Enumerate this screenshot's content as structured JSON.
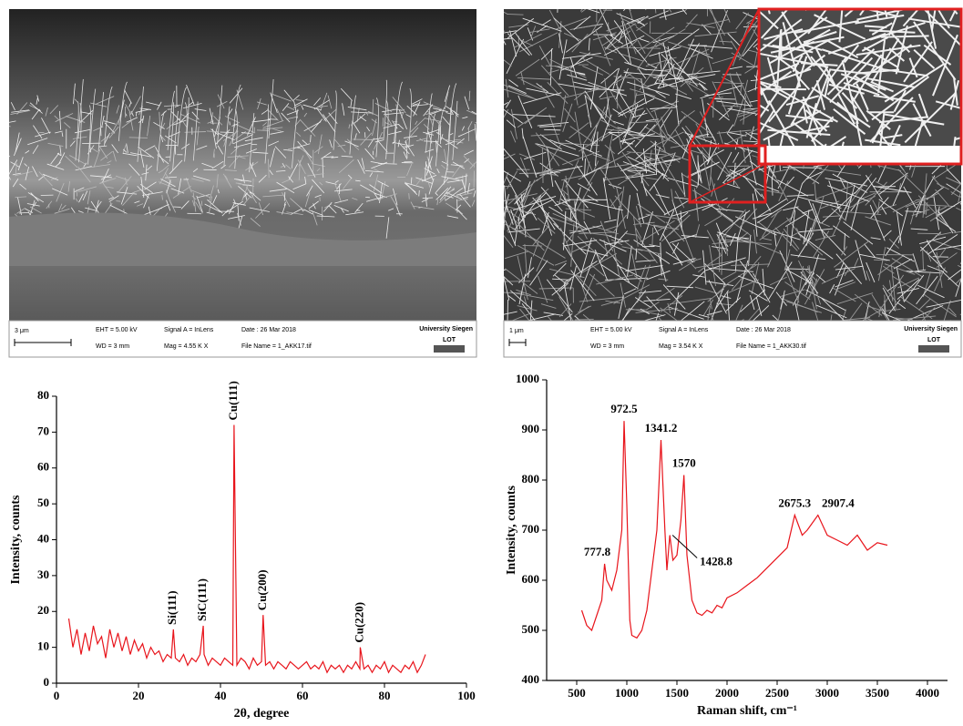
{
  "sem_images": [
    {
      "scale_bar": "3 μm",
      "eht": "EHT =  5.00 kV",
      "signal": "Signal A = InLens",
      "date": "Date : 26 Mar 2018",
      "wd": "WD =    3 mm",
      "mag": "Mag =   4.55 K X",
      "file": "File Name = 1_AKK17.tif",
      "institution": "University Siegen",
      "logo": "LOT"
    },
    {
      "scale_bar": "1 μm",
      "eht": "EHT =  5.00 kV",
      "signal": "Signal A = InLens",
      "date": "Date : 26 Mar 2018",
      "wd": "WD =    3 mm",
      "mag": "Mag =   3.54 K X",
      "file": "File Name = 1_AKK30.tif",
      "institution": "University Siegen",
      "logo": "LOT"
    }
  ],
  "chart_data": [
    {
      "type": "line",
      "x_label": "2θ, degree",
      "y_label": "Intensity, counts",
      "x": [
        3,
        4,
        5,
        6,
        7,
        8,
        9,
        10,
        11,
        12,
        13,
        14,
        15,
        16,
        17,
        18,
        19,
        20,
        21,
        22,
        23,
        24,
        25,
        26,
        27,
        28,
        28.5,
        29,
        30,
        31,
        32,
        33,
        34,
        35,
        35.8,
        36,
        37,
        38,
        39,
        40,
        41,
        42,
        43,
        43.3,
        44,
        45,
        46,
        47,
        48,
        49,
        50,
        50.4,
        51,
        52,
        53,
        54,
        55,
        56,
        57,
        58,
        59,
        60,
        61,
        62,
        63,
        64,
        65,
        66,
        67,
        68,
        69,
        70,
        71,
        72,
        73,
        74,
        74.1,
        75,
        76,
        77,
        78,
        79,
        80,
        81,
        82,
        83,
        84,
        85,
        86,
        87,
        88,
        89,
        90
      ],
      "series": [
        {
          "color": "#e8141b",
          "values": [
            18,
            10,
            15,
            8,
            14,
            9,
            16,
            11,
            13,
            7,
            15,
            10,
            14,
            9,
            13,
            8,
            12,
            9,
            11,
            7,
            10,
            8,
            9,
            6,
            8,
            7,
            15,
            7,
            6,
            8,
            5,
            7,
            6,
            8,
            16,
            8,
            5,
            7,
            6,
            5,
            7,
            6,
            5,
            72,
            5,
            7,
            6,
            4,
            7,
            5,
            6,
            19,
            5,
            6,
            4,
            6,
            5,
            4,
            6,
            5,
            4,
            5,
            6,
            4,
            5,
            4,
            6,
            3,
            5,
            4,
            5,
            3,
            5,
            4,
            6,
            4,
            10,
            4,
            5,
            3,
            5,
            4,
            6,
            3,
            5,
            4,
            3,
            5,
            4,
            6,
            3,
            5,
            8
          ]
        }
      ],
      "xlim": [
        0,
        100
      ],
      "xticks": [
        0,
        20,
        40,
        60,
        80,
        100
      ],
      "ylim": [
        0,
        80
      ],
      "yticks": [
        0,
        10,
        20,
        30,
        40,
        50,
        60,
        70,
        80
      ],
      "annotations": [
        {
          "text": "Si(111)",
          "x": 28.5,
          "y": 15
        },
        {
          "text": "SiC(111)",
          "x": 35.8,
          "y": 16
        },
        {
          "text": "Cu(111)",
          "x": 43.3,
          "y": 72
        },
        {
          "text": "Cu(200)",
          "x": 50.4,
          "y": 19
        },
        {
          "text": "Cu(220)",
          "x": 74.1,
          "y": 10
        }
      ]
    },
    {
      "type": "line",
      "x_label": "Raman shift, cm⁻¹",
      "y_label": "Intensity, counts",
      "x": [
        550,
        600,
        650,
        700,
        750,
        777.8,
        800,
        850,
        900,
        950,
        972.5,
        1000,
        1030,
        1050,
        1100,
        1150,
        1200,
        1250,
        1300,
        1341.2,
        1380,
        1400,
        1428.8,
        1460,
        1500,
        1540,
        1570,
        1600,
        1650,
        1700,
        1750,
        1800,
        1850,
        1900,
        1950,
        2000,
        2100,
        2200,
        2300,
        2400,
        2500,
        2600,
        2675.3,
        2750,
        2800,
        2907.4,
        3000,
        3100,
        3200,
        3300,
        3400,
        3500,
        3600
      ],
      "series": [
        {
          "color": "#e8141b",
          "values": [
            540,
            510,
            500,
            530,
            560,
            633,
            600,
            580,
            620,
            700,
            918,
            750,
            520,
            490,
            485,
            500,
            540,
            620,
            700,
            880,
            700,
            620,
            690,
            640,
            650,
            720,
            810,
            650,
            560,
            535,
            530,
            540,
            535,
            550,
            545,
            565,
            575,
            590,
            605,
            625,
            645,
            665,
            730,
            690,
            700,
            730,
            690,
            680,
            670,
            690,
            660,
            675,
            670
          ]
        }
      ],
      "xlim": [
        200,
        4200
      ],
      "xticks": [
        500,
        1000,
        1500,
        2000,
        2500,
        3000,
        3500,
        4000
      ],
      "ylim": [
        400,
        1000
      ],
      "yticks": [
        400,
        500,
        600,
        700,
        800,
        900,
        1000
      ],
      "annotations": [
        {
          "text": "777.8",
          "x": 777.8,
          "y": 633
        },
        {
          "text": "972.5",
          "x": 972.5,
          "y": 918
        },
        {
          "text": "1341.2",
          "x": 1341.2,
          "y": 880
        },
        {
          "text": "1428.8",
          "x": 1428.8,
          "y": 690
        },
        {
          "text": "1570",
          "x": 1570,
          "y": 810
        },
        {
          "text": "2675.3",
          "x": 2675.3,
          "y": 730
        },
        {
          "text": "2907.4",
          "x": 2907.4,
          "y": 730
        }
      ]
    }
  ]
}
